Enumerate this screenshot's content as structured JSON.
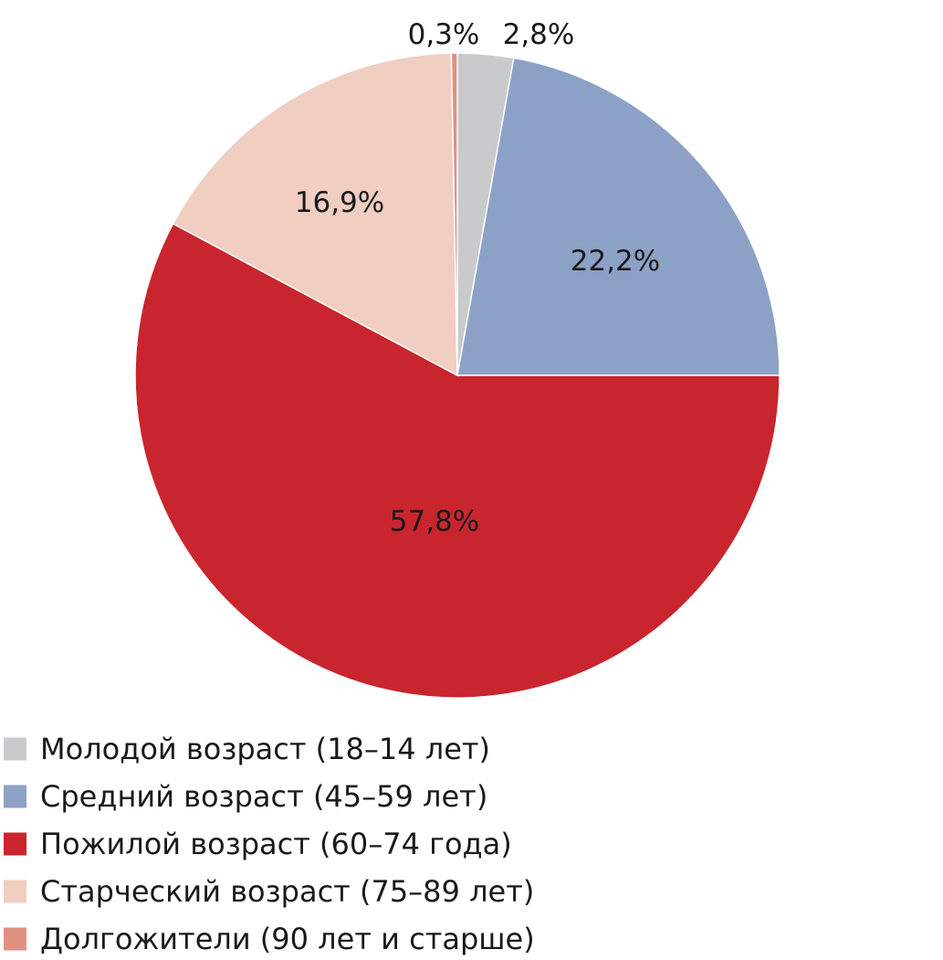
{
  "chart_data": {
    "type": "pie",
    "start_angle": "12 o'clock",
    "direction": "clockwise",
    "slices": [
      {
        "name": "Молодой возраст (18–14 лет)",
        "value": 2.8,
        "label": "2,8%",
        "color": "#c9cacc"
      },
      {
        "name": "Средний возраст (45–59 лет)",
        "value": 22.2,
        "label": "22,2%",
        "color": "#8ca1c6"
      },
      {
        "name": "Пожилой возраст (60–74 года)",
        "value": 57.8,
        "label": "57,8%",
        "color": "#c9252e"
      },
      {
        "name": "Старческий возраст (75–89 лет)",
        "value": 16.9,
        "label": "16,9%",
        "color": "#f0cec1"
      },
      {
        "name": "Долгожители (90 лет и старше)",
        "value": 0.3,
        "label": "0,3%",
        "color": "#e09080"
      }
    ],
    "legend_position": "bottom-left"
  }
}
